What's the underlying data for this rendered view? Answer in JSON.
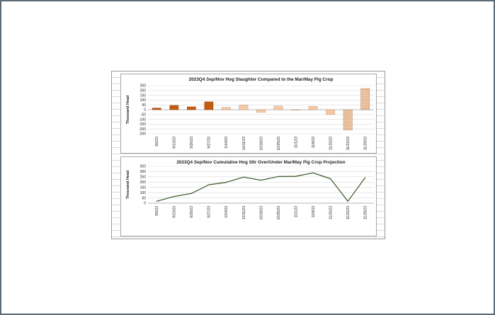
{
  "colors": {
    "bar_dark": "#c55a11",
    "bar_light": "#f4c9a6",
    "bar_hatch": "#a87c5b",
    "line": "#375623",
    "frame": "#5e6a73"
  },
  "chart_data": [
    {
      "type": "bar",
      "title": "2023Q4 Sep/Nov Hog Slaughter Compared  to the Mar/May  Pig Crop",
      "xlabel": "",
      "ylabel": "Thousand Head",
      "ylim": [
        -250,
        250
      ],
      "yticks": [
        "250",
        "200",
        "150",
        "100",
        "50",
        "0",
        "-50",
        "-100",
        "-150",
        "-200",
        "-250"
      ],
      "ytick_values": [
        250,
        200,
        150,
        100,
        50,
        0,
        -50,
        -100,
        -150,
        -200,
        -250
      ],
      "categories": [
        "9/6/23",
        "9/13/23",
        "9/20/23",
        "9/27/23",
        "10/4/23",
        "10/11/23",
        "10/18/23",
        "10/25/23",
        "11/1/23",
        "11/8/23",
        "11/15/23",
        "11/22/23",
        "11/29/23"
      ],
      "values": [
        18,
        45,
        30,
        82,
        25,
        50,
        -28,
        38,
        -5,
        35,
        -50,
        -210,
        220
      ],
      "bar_style": [
        "dark",
        "dark",
        "dark",
        "dark",
        "light",
        "light",
        "light",
        "light",
        "light",
        "light",
        "light",
        "hatched",
        "hatched"
      ],
      "grid": true
    },
    {
      "type": "line",
      "title": "2023Q4 Sep/Nov Cumulative  Hog Sltr Over/Under Mar/May Pig Crop Projection",
      "xlabel": "",
      "ylabel": "Thousand Head",
      "ylim": [
        0,
        350
      ],
      "yticks": [
        "350",
        "300",
        "250",
        "200",
        "150",
        "100",
        "50",
        "0"
      ],
      "ytick_values": [
        350,
        300,
        250,
        200,
        150,
        100,
        50,
        0
      ],
      "categories": [
        "9/6/23",
        "9/13/23",
        "9/20/23",
        "9/27/23",
        "10/4/23",
        "10/11/23",
        "10/18/23",
        "10/25/23",
        "11/1/23",
        "11/8/23",
        "11/15/23",
        "11/22/23",
        "11/29/23"
      ],
      "values": [
        18,
        63,
        92,
        175,
        198,
        248,
        218,
        253,
        255,
        288,
        232,
        18,
        243
      ],
      "grid": true
    }
  ]
}
